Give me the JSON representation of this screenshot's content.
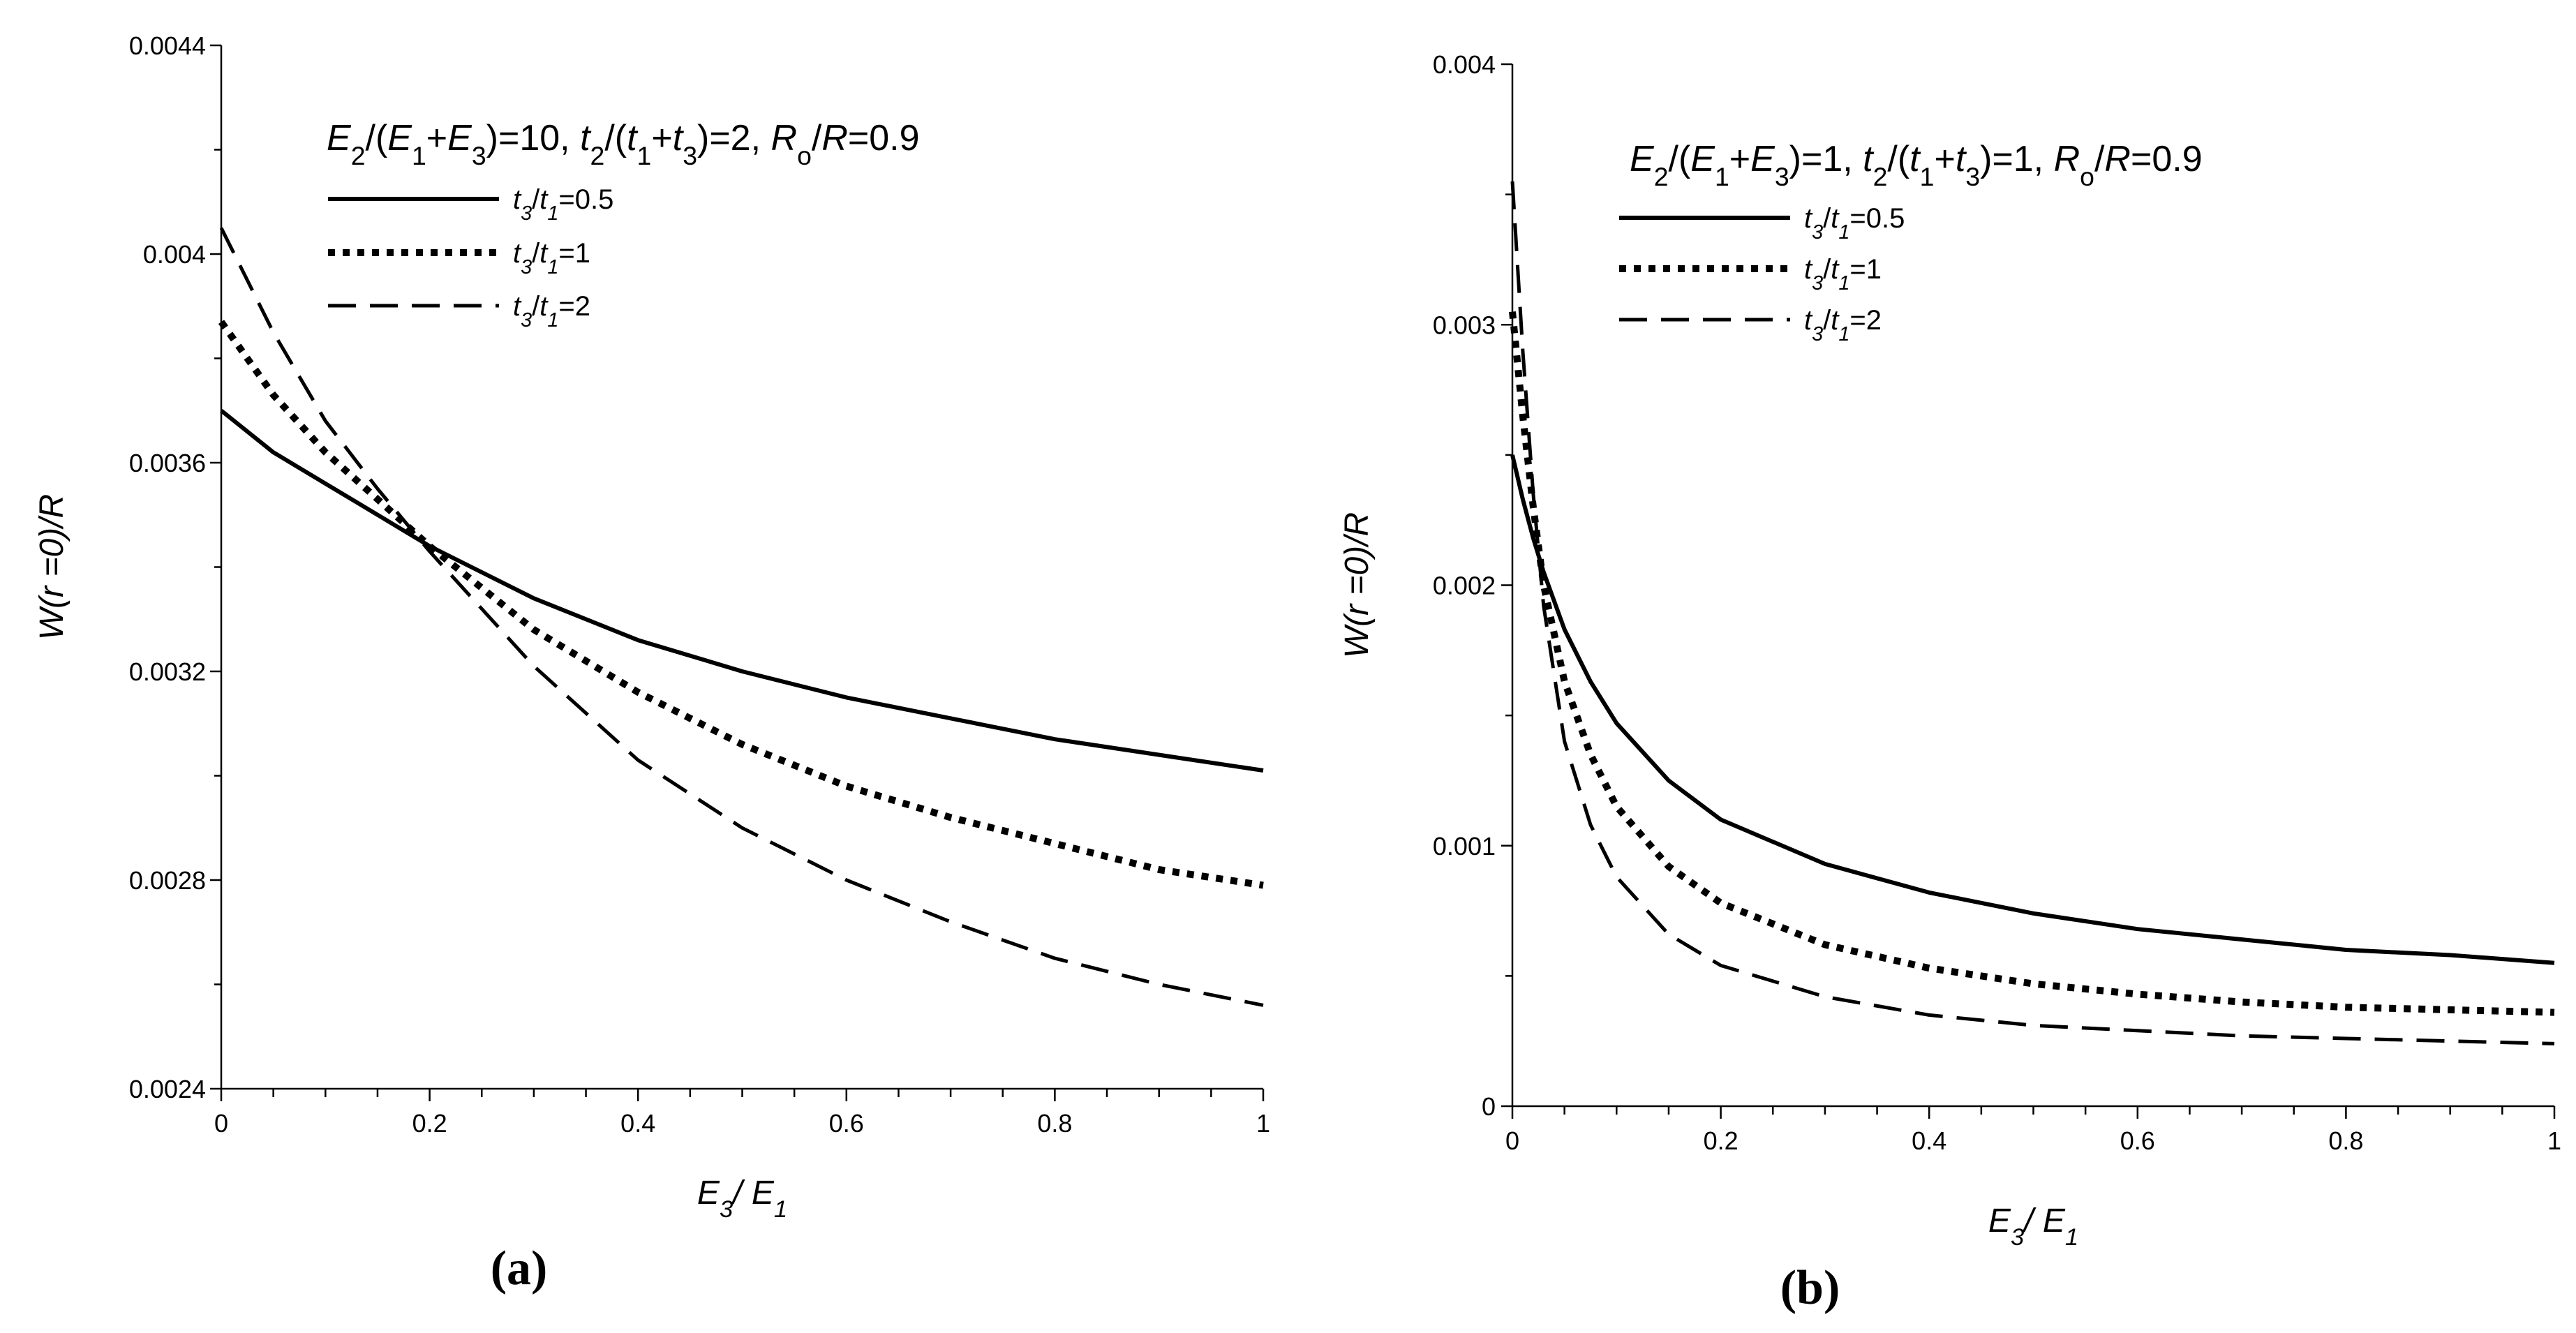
{
  "chart_data": [
    {
      "id": "a",
      "type": "line",
      "panel_label": "(a)",
      "annotation": {
        "runs": [
          {
            "t": "E",
            "i": true
          },
          {
            "t": "2",
            "sub": true
          },
          {
            "t": "/("
          },
          {
            "t": "E",
            "i": true
          },
          {
            "t": "1",
            "sub": true
          },
          {
            "t": "+"
          },
          {
            "t": "E",
            "i": true
          },
          {
            "t": "3",
            "sub": true
          },
          {
            "t": ")=10, "
          },
          {
            "t": "t",
            "i": true
          },
          {
            "t": "2",
            "sub": true
          },
          {
            "t": "/("
          },
          {
            "t": "t",
            "i": true
          },
          {
            "t": "1",
            "sub": true
          },
          {
            "t": "+"
          },
          {
            "t": "t",
            "i": true
          },
          {
            "t": "3",
            "sub": true
          },
          {
            "t": ")=2, "
          },
          {
            "t": "R",
            "i": true
          },
          {
            "t": "o",
            "sub": true
          },
          {
            "t": "/"
          },
          {
            "t": "R",
            "i": true
          },
          {
            "t": "=0.9"
          }
        ]
      },
      "xlabel": {
        "runs": [
          {
            "t": "E",
            "i": true
          },
          {
            "t": "3",
            "sub": true,
            "i": true
          },
          {
            "t": "/ "
          },
          {
            "t": "E",
            "i": true
          },
          {
            "t": "1",
            "sub": true,
            "i": true
          }
        ]
      },
      "ylabel": {
        "runs": [
          {
            "t": "W(r =0)/R",
            "i": true
          }
        ]
      },
      "xlim": [
        0,
        1
      ],
      "ylim": [
        0.0024,
        0.0044
      ],
      "xticks": [
        0,
        0.2,
        0.4,
        0.6,
        0.8,
        1
      ],
      "xtick_labels": [
        "0",
        "0.2",
        "0.4",
        "0.6",
        "0.8",
        "1"
      ],
      "yticks": [
        0.0024,
        0.0028,
        0.0032,
        0.0036,
        0.004,
        0.0044
      ],
      "ytick_labels": [
        "0.0024",
        "0.0028",
        "0.0032",
        "0.0036",
        "0.004",
        "0.0044"
      ],
      "series": [
        {
          "name": "t3/t1=0.5",
          "style": "solid",
          "x": [
            0,
            0.05,
            0.1,
            0.15,
            0.2,
            0.3,
            0.4,
            0.5,
            0.6,
            0.7,
            0.8,
            0.9,
            1.0
          ],
          "y": [
            0.0037,
            0.00362,
            0.00356,
            0.0035,
            0.00344,
            0.00334,
            0.00326,
            0.0032,
            0.00315,
            0.00311,
            0.00307,
            0.00304,
            0.00301
          ]
        },
        {
          "name": "t3/t1=1",
          "style": "dotted",
          "x": [
            0,
            0.05,
            0.1,
            0.15,
            0.2,
            0.3,
            0.4,
            0.5,
            0.6,
            0.7,
            0.8,
            0.9,
            1.0
          ],
          "y": [
            0.00387,
            0.00373,
            0.00362,
            0.00353,
            0.00344,
            0.00328,
            0.00316,
            0.00306,
            0.00298,
            0.00292,
            0.00287,
            0.00282,
            0.00279
          ]
        },
        {
          "name": "t3/t1=2",
          "style": "dashed",
          "x": [
            0,
            0.05,
            0.1,
            0.15,
            0.2,
            0.3,
            0.4,
            0.5,
            0.6,
            0.7,
            0.8,
            0.9,
            1.0
          ],
          "y": [
            0.00405,
            0.00385,
            0.00368,
            0.00355,
            0.00343,
            0.00321,
            0.00303,
            0.0029,
            0.0028,
            0.00272,
            0.00265,
            0.0026,
            0.00256
          ]
        }
      ],
      "legend": [
        {
          "style": "solid",
          "runs": [
            {
              "t": "t",
              "i": true
            },
            {
              "t": "3",
              "sub": true,
              "i": true
            },
            {
              "t": "/"
            },
            {
              "t": "t",
              "i": true
            },
            {
              "t": "1",
              "sub": true,
              "i": true
            },
            {
              "t": "=0.5"
            }
          ]
        },
        {
          "style": "dotted",
          "runs": [
            {
              "t": "t",
              "i": true
            },
            {
              "t": "3",
              "sub": true,
              "i": true
            },
            {
              "t": "/"
            },
            {
              "t": "t",
              "i": true
            },
            {
              "t": "1",
              "sub": true,
              "i": true
            },
            {
              "t": "=1"
            }
          ]
        },
        {
          "style": "dashed",
          "runs": [
            {
              "t": "t",
              "i": true
            },
            {
              "t": "3",
              "sub": true,
              "i": true
            },
            {
              "t": "/"
            },
            {
              "t": "t",
              "i": true
            },
            {
              "t": "1",
              "sub": true,
              "i": true
            },
            {
              "t": "=2"
            }
          ]
        }
      ]
    },
    {
      "id": "b",
      "type": "line",
      "panel_label": "(b)",
      "annotation": {
        "runs": [
          {
            "t": "E",
            "i": true
          },
          {
            "t": "2",
            "sub": true
          },
          {
            "t": "/("
          },
          {
            "t": "E",
            "i": true
          },
          {
            "t": "1",
            "sub": true
          },
          {
            "t": "+"
          },
          {
            "t": "E",
            "i": true
          },
          {
            "t": "3",
            "sub": true
          },
          {
            "t": ")=1, "
          },
          {
            "t": "t",
            "i": true
          },
          {
            "t": "2",
            "sub": true
          },
          {
            "t": "/("
          },
          {
            "t": "t",
            "i": true
          },
          {
            "t": "1",
            "sub": true
          },
          {
            "t": "+"
          },
          {
            "t": "t",
            "i": true
          },
          {
            "t": "3",
            "sub": true
          },
          {
            "t": ")=1, "
          },
          {
            "t": "R",
            "i": true
          },
          {
            "t": "o",
            "sub": true
          },
          {
            "t": "/"
          },
          {
            "t": "R",
            "i": true
          },
          {
            "t": "=0.9"
          }
        ]
      },
      "xlabel": {
        "runs": [
          {
            "t": "E",
            "i": true
          },
          {
            "t": "3",
            "sub": true,
            "i": true
          },
          {
            "t": "/ "
          },
          {
            "t": "E",
            "i": true
          },
          {
            "t": "1",
            "sub": true,
            "i": true
          }
        ]
      },
      "ylabel": {
        "runs": [
          {
            "t": "W(r =0)/R",
            "i": true
          }
        ]
      },
      "xlim": [
        0,
        1
      ],
      "ylim": [
        0,
        0.004
      ],
      "xticks": [
        0,
        0.2,
        0.4,
        0.6,
        0.8,
        1
      ],
      "xtick_labels": [
        "0",
        "0.2",
        "0.4",
        "0.6",
        "0.8",
        "1"
      ],
      "yticks": [
        0,
        0.001,
        0.002,
        0.003,
        0.004
      ],
      "ytick_labels": [
        "0",
        "0.001",
        "0.002",
        "0.003",
        "0.004"
      ],
      "series": [
        {
          "name": "t3/t1=0.5",
          "style": "solid",
          "x": [
            0,
            0.01,
            0.02,
            0.03,
            0.05,
            0.075,
            0.1,
            0.15,
            0.2,
            0.3,
            0.4,
            0.5,
            0.6,
            0.7,
            0.8,
            0.9,
            1.0
          ],
          "y": [
            0.0025,
            0.00233,
            0.00218,
            0.00205,
            0.00183,
            0.00163,
            0.00147,
            0.00125,
            0.0011,
            0.00093,
            0.00082,
            0.00074,
            0.00068,
            0.00064,
            0.0006,
            0.00058,
            0.00055
          ]
        },
        {
          "name": "t3/t1=1",
          "style": "dotted",
          "x": [
            0,
            0.01,
            0.02,
            0.03,
            0.05,
            0.075,
            0.1,
            0.15,
            0.2,
            0.3,
            0.4,
            0.5,
            0.6,
            0.7,
            0.8,
            0.9,
            1.0
          ],
          "y": [
            0.00305,
            0.00265,
            0.0023,
            0.002,
            0.00163,
            0.00135,
            0.00115,
            0.00092,
            0.00078,
            0.00062,
            0.00053,
            0.00047,
            0.00043,
            0.0004,
            0.00038,
            0.00037,
            0.00036
          ]
        },
        {
          "name": "t3/t1=2",
          "style": "dashed",
          "x": [
            0,
            0.01,
            0.02,
            0.03,
            0.05,
            0.075,
            0.1,
            0.15,
            0.2,
            0.3,
            0.4,
            0.5,
            0.6,
            0.7,
            0.8,
            0.9,
            1.0
          ],
          "y": [
            0.00355,
            0.0029,
            0.00235,
            0.00192,
            0.0014,
            0.00108,
            0.00088,
            0.00066,
            0.00054,
            0.00042,
            0.00035,
            0.00031,
            0.00029,
            0.00027,
            0.00026,
            0.00025,
            0.00024
          ]
        }
      ],
      "legend": [
        {
          "style": "solid",
          "runs": [
            {
              "t": "t",
              "i": true
            },
            {
              "t": "3",
              "sub": true,
              "i": true
            },
            {
              "t": "/"
            },
            {
              "t": "t",
              "i": true
            },
            {
              "t": "1",
              "sub": true,
              "i": true
            },
            {
              "t": "=0.5"
            }
          ]
        },
        {
          "style": "dotted",
          "runs": [
            {
              "t": "t",
              "i": true
            },
            {
              "t": "3",
              "sub": true,
              "i": true
            },
            {
              "t": "/"
            },
            {
              "t": "t",
              "i": true
            },
            {
              "t": "1",
              "sub": true,
              "i": true
            },
            {
              "t": "=1"
            }
          ]
        },
        {
          "style": "dashed",
          "runs": [
            {
              "t": "t",
              "i": true
            },
            {
              "t": "3",
              "sub": true,
              "i": true
            },
            {
              "t": "/"
            },
            {
              "t": "t",
              "i": true
            },
            {
              "t": "1",
              "sub": true,
              "i": true
            },
            {
              "t": "=2"
            }
          ]
        }
      ]
    }
  ]
}
